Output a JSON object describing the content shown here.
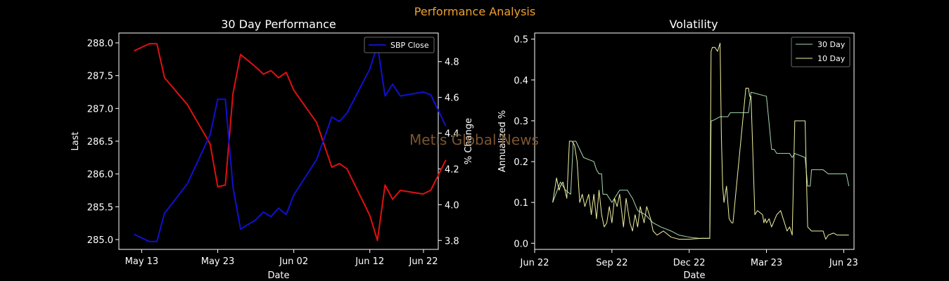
{
  "figure": {
    "suptitle": "Performance Analysis",
    "watermark": "Metis Global News"
  },
  "colors": {
    "suptitle": "#f0a030",
    "watermark": "#7a5530",
    "close": "#1010d0",
    "pct": "#e01010",
    "v30": "#a8d8b0",
    "v10": "#f0f0a0"
  },
  "chart_data": [
    {
      "type": "line",
      "title": "30 Day Performance",
      "xlabel": "Date",
      "ylabel": "Last",
      "y2label": "% Change",
      "xlim": [
        -3,
        39
      ],
      "ylim": [
        284.85,
        288.15
      ],
      "y2lim": [
        3.75,
        4.96
      ],
      "xticks": [
        {
          "label": "May 13",
          "x": 0
        },
        {
          "label": "May 23",
          "x": 10
        },
        {
          "label": "Jun 02",
          "x": 20
        },
        {
          "label": "Jun 12",
          "x": 30
        },
        {
          "label": "Jun 22",
          "x": 40
        }
      ],
      "yticks": [
        "285.0",
        "285.5",
        "286.0",
        "286.5",
        "287.0",
        "287.5",
        "288.0"
      ],
      "y2ticks": [
        "3.8",
        "4.0",
        "4.2",
        "4.4",
        "4.6",
        "4.8"
      ],
      "legend": [
        "SBP Close"
      ],
      "series": [
        {
          "name": "SBP Close",
          "x": [
            -1,
            1,
            2,
            3,
            6,
            9,
            10,
            11,
            12,
            13,
            15,
            16,
            17,
            18,
            19,
            20,
            23,
            25,
            26,
            27,
            30,
            31,
            32,
            33,
            34,
            37,
            38,
            40
          ],
          "y": [
            285.08,
            284.97,
            284.97,
            285.4,
            285.85,
            286.6,
            287.14,
            287.14,
            285.8,
            285.16,
            285.3,
            285.42,
            285.35,
            285.48,
            285.38,
            285.68,
            286.22,
            286.87,
            286.8,
            286.93,
            287.6,
            287.97,
            287.19,
            287.37,
            287.19,
            287.25,
            287.21,
            286.73
          ]
        },
        {
          "name": "% Change",
          "axis": "right",
          "x": [
            -1,
            1,
            2,
            3,
            6,
            9,
            10,
            11,
            12,
            13,
            15,
            16,
            17,
            18,
            19,
            20,
            23,
            25,
            26,
            27,
            30,
            31,
            32,
            33,
            34,
            37,
            38,
            40
          ],
          "y": [
            4.86,
            4.9,
            4.9,
            4.71,
            4.56,
            4.34,
            4.1,
            4.11,
            4.62,
            4.84,
            4.77,
            4.73,
            4.75,
            4.71,
            4.74,
            4.64,
            4.46,
            4.21,
            4.23,
            4.2,
            3.94,
            3.8,
            4.11,
            4.03,
            4.08,
            4.06,
            4.08,
            4.25
          ]
        }
      ]
    },
    {
      "type": "line",
      "title": "Volatility",
      "xlabel": "Date",
      "ylabel": "Annualized %",
      "xlim": [
        0,
        12.4
      ],
      "ylim": [
        -0.015,
        0.515
      ],
      "xticks": [
        {
          "label": "Jun 22",
          "x": 0
        },
        {
          "label": "Sep 22",
          "x": 3
        },
        {
          "label": "Dec 22",
          "x": 6
        },
        {
          "label": "Mar 23",
          "x": 9
        },
        {
          "label": "Jun 23",
          "x": 12
        }
      ],
      "yticks": [
        "0.0",
        "0.1",
        "0.2",
        "0.3",
        "0.4",
        "0.5"
      ],
      "legend": [
        "30 Day",
        "10 Day"
      ],
      "series": [
        {
          "name": "30 Day",
          "x": [
            0.7,
            1.0,
            1.2,
            1.4,
            1.5,
            1.6,
            1.9,
            2.3,
            2.4,
            2.5,
            2.6,
            2.65,
            2.8,
            3.0,
            3.2,
            3.3,
            3.4,
            3.6,
            3.8,
            4.0,
            4.3,
            4.6,
            4.9,
            5.3,
            5.6,
            6.0,
            6.4,
            6.8,
            6.85,
            6.9,
            7.2,
            7.5,
            7.6,
            7.65,
            7.8,
            7.9,
            8.3,
            8.4,
            9.0,
            9.2,
            9.3,
            9.4,
            9.9,
            10.0,
            10.1,
            10.5,
            10.6,
            10.7,
            10.75,
            11.2,
            11.4,
            11.5,
            12.1,
            12.2
          ],
          "y": [
            0.1,
            0.15,
            0.13,
            0.12,
            0.25,
            0.25,
            0.21,
            0.2,
            0.18,
            0.17,
            0.17,
            0.12,
            0.12,
            0.1,
            0.12,
            0.13,
            0.13,
            0.13,
            0.11,
            0.08,
            0.07,
            0.05,
            0.04,
            0.03,
            0.02,
            0.015,
            0.012,
            0.012,
            0.3,
            0.3,
            0.31,
            0.31,
            0.32,
            0.32,
            0.32,
            0.32,
            0.32,
            0.37,
            0.36,
            0.23,
            0.23,
            0.22,
            0.22,
            0.21,
            0.22,
            0.21,
            0.14,
            0.14,
            0.18,
            0.18,
            0.17,
            0.17,
            0.17,
            0.14
          ]
        },
        {
          "name": "10 Day",
          "x": [
            0.7,
            0.85,
            0.95,
            1.0,
            1.1,
            1.25,
            1.35,
            1.45,
            1.55,
            1.65,
            1.75,
            1.85,
            1.95,
            2.1,
            2.2,
            2.3,
            2.4,
            2.5,
            2.6,
            2.7,
            2.8,
            2.9,
            3.0,
            3.1,
            3.2,
            3.3,
            3.45,
            3.55,
            3.7,
            3.8,
            3.9,
            4.0,
            4.1,
            4.25,
            4.35,
            4.5,
            4.6,
            4.75,
            5.0,
            5.3,
            5.6,
            6.0,
            6.5,
            6.8,
            6.85,
            6.9,
            7.0,
            7.1,
            7.2,
            7.25,
            7.3,
            7.35,
            7.45,
            7.55,
            7.65,
            7.7,
            8.2,
            8.3,
            8.35,
            8.4,
            8.55,
            8.65,
            8.85,
            8.9,
            8.95,
            9.0,
            9.1,
            9.2,
            9.4,
            9.55,
            9.65,
            9.8,
            9.9,
            10.0,
            10.1,
            10.2,
            10.35,
            10.5,
            10.6,
            10.75,
            11.2,
            11.3,
            11.4,
            11.6,
            11.75,
            11.85,
            11.95,
            12.2
          ],
          "y": [
            0.1,
            0.16,
            0.13,
            0.14,
            0.15,
            0.11,
            0.25,
            0.25,
            0.24,
            0.2,
            0.1,
            0.12,
            0.09,
            0.12,
            0.07,
            0.12,
            0.06,
            0.13,
            0.07,
            0.04,
            0.05,
            0.09,
            0.05,
            0.11,
            0.09,
            0.12,
            0.04,
            0.11,
            0.05,
            0.03,
            0.07,
            0.04,
            0.09,
            0.05,
            0.09,
            0.06,
            0.03,
            0.02,
            0.03,
            0.015,
            0.01,
            0.01,
            0.012,
            0.012,
            0.47,
            0.48,
            0.48,
            0.47,
            0.49,
            0.26,
            0.14,
            0.1,
            0.14,
            0.06,
            0.05,
            0.05,
            0.38,
            0.38,
            0.36,
            0.36,
            0.07,
            0.08,
            0.07,
            0.05,
            0.06,
            0.05,
            0.06,
            0.04,
            0.07,
            0.08,
            0.06,
            0.03,
            0.04,
            0.02,
            0.3,
            0.3,
            0.3,
            0.3,
            0.04,
            0.03,
            0.03,
            0.01,
            0.02,
            0.025,
            0.02,
            0.02,
            0.02,
            0.02
          ]
        }
      ]
    }
  ]
}
